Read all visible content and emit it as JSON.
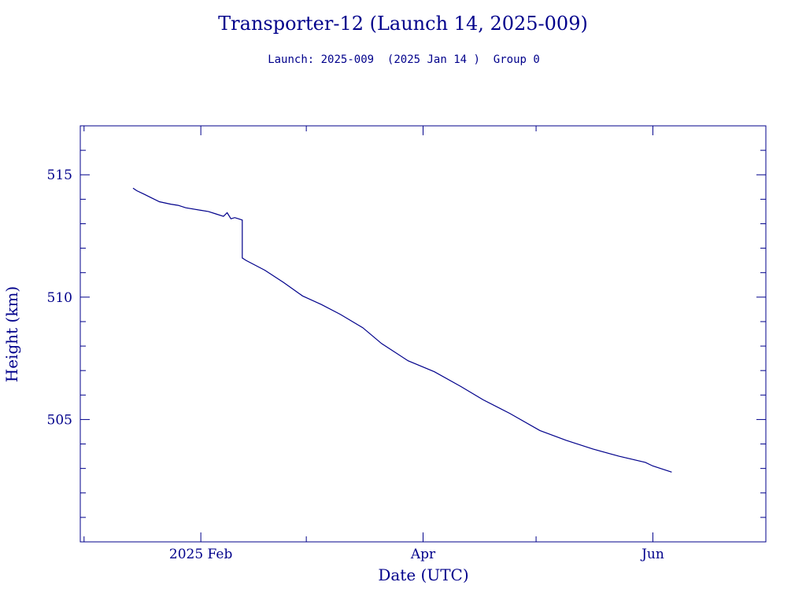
{
  "colors": {
    "ink": "#00008b",
    "background": "#ffffff"
  },
  "chart_data": {
    "type": "line",
    "title": "Transporter-12 (Launch 14, 2025-009)",
    "subtitle": "Launch: 2025-009  (2025 Jan 14 )  Group 0",
    "xlabel": "Date (UTC)",
    "ylabel": "Height (km)",
    "x_is_date": true,
    "xlim": [
      "2024-12-31",
      "2025-07-01"
    ],
    "ylim": [
      500,
      517
    ],
    "x_major_ticks": [
      {
        "date": "2025-02-01",
        "label": "2025 Feb"
      },
      {
        "date": "2025-04-01",
        "label": "Apr"
      },
      {
        "date": "2025-06-01",
        "label": "Jun"
      }
    ],
    "x_minor_ticks": [
      "2025-01-01",
      "2025-03-01",
      "2025-05-01",
      "2025-07-01"
    ],
    "y_major_ticks": [
      505,
      510,
      515
    ],
    "y_minor_step": 1,
    "grid": false,
    "series": [
      {
        "x": [
          "2025-01-14",
          "2025-01-15",
          "2025-01-17",
          "2025-01-19",
          "2025-01-21",
          "2025-01-24",
          "2025-01-26",
          "2025-01-28",
          "2025-02-01",
          "2025-02-03",
          "2025-02-05",
          "2025-02-07",
          "2025-02-08",
          "2025-02-09",
          "2025-02-10",
          "2025-02-11",
          "2025-02-12",
          "2025-02-12",
          "2025-02-13",
          "2025-02-18",
          "2025-02-23",
          "2025-02-28",
          "2025-03-05",
          "2025-03-10",
          "2025-03-16",
          "2025-03-21",
          "2025-03-28",
          "2025-04-04",
          "2025-04-11",
          "2025-04-17",
          "2025-04-24",
          "2025-05-02",
          "2025-05-09",
          "2025-05-16",
          "2025-05-23",
          "2025-05-30",
          "2025-06-01",
          "2025-06-06"
        ],
        "y": [
          514.45,
          514.35,
          514.2,
          514.05,
          513.9,
          513.8,
          513.75,
          513.65,
          513.55,
          513.5,
          513.4,
          513.3,
          513.45,
          513.2,
          513.25,
          513.2,
          513.15,
          511.6,
          511.5,
          511.1,
          510.6,
          510.05,
          509.7,
          509.3,
          508.75,
          508.1,
          507.4,
          506.95,
          506.35,
          505.8,
          505.25,
          504.55,
          504.15,
          503.8,
          503.5,
          503.25,
          503.1,
          502.85
        ]
      }
    ]
  }
}
